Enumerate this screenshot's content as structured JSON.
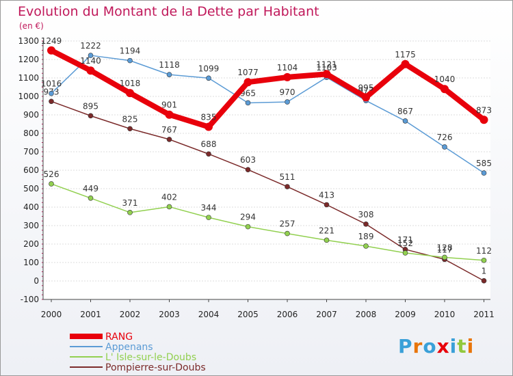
{
  "chart_data": {
    "type": "line",
    "title": "Evolution du Montant de la Dette par Habitant",
    "subtitle": "(en €)",
    "x": [
      "2000",
      "2001",
      "2002",
      "2003",
      "2004",
      "2005",
      "2006",
      "2007",
      "2008",
      "2009",
      "2010",
      "2011"
    ],
    "ylim": [
      -100,
      1300
    ],
    "yticks": [
      -100,
      0,
      100,
      200,
      300,
      400,
      500,
      600,
      700,
      800,
      900,
      1000,
      1100,
      1200,
      1300
    ],
    "grid": true,
    "legend_position": "bottom-left",
    "series": [
      {
        "name": "RANG",
        "color": "#e8000b",
        "values": [
          1249,
          1140,
          1018,
          901,
          835,
          1077,
          1104,
          1121,
          995,
          1175,
          1040,
          873
        ]
      },
      {
        "name": "Appenans",
        "color": "#5b9bd5",
        "values": [
          1016,
          1222,
          1194,
          1118,
          1099,
          965,
          970,
          1103,
          977,
          867,
          726,
          585
        ]
      },
      {
        "name": "L' Isle-sur-le-Doubs",
        "color": "#92d050",
        "values": [
          526,
          449,
          371,
          402,
          344,
          294,
          257,
          221,
          189,
          152,
          128,
          112
        ]
      },
      {
        "name": "Pompierre-sur-Doubs",
        "color": "#7b2a2a",
        "values": [
          973,
          895,
          825,
          767,
          688,
          603,
          511,
          413,
          308,
          171,
          117,
          1
        ]
      }
    ]
  },
  "logo": {
    "text": "Proxiti",
    "letters": [
      "P",
      "r",
      "o",
      "x",
      "i",
      "t",
      "i"
    ],
    "colors": [
      "#3aa0d8",
      "#e8750a",
      "#3aa0d8",
      "#e8000b",
      "#3aa0d8",
      "#92c83e",
      "#e8750a"
    ]
  }
}
